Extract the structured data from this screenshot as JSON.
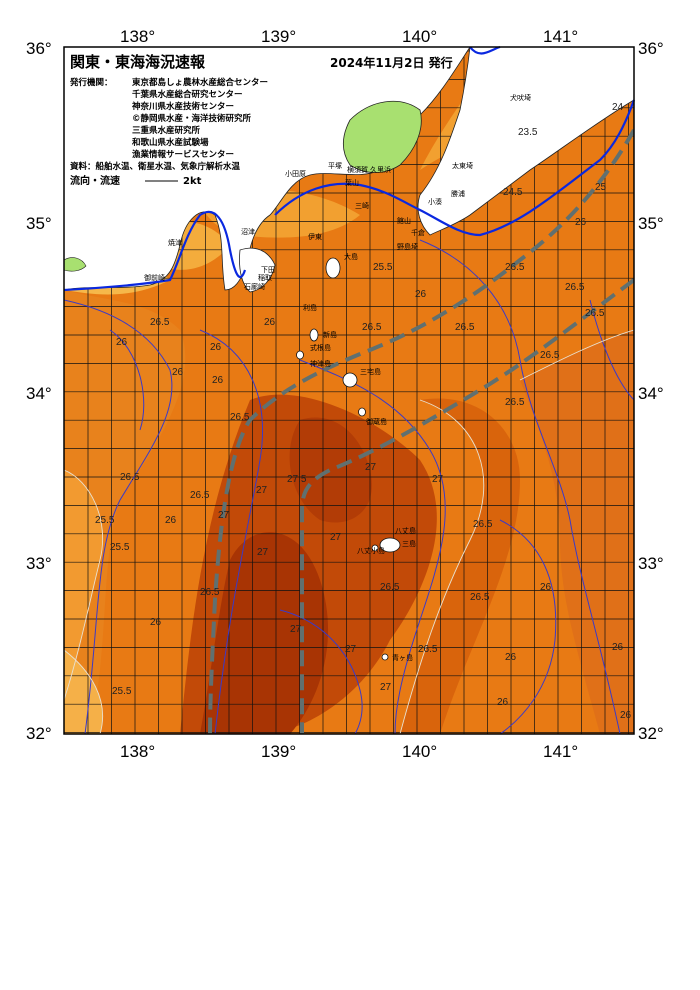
{
  "title": "関東・東海海況速報",
  "date": "2024年11月2日 発行",
  "publisher_label": "発行機関：",
  "publishers": [
    "東京都島しょ農林水産総合センター",
    "千葉県水産総合研究センター",
    "神奈川県水産技術センター",
    "©静岡県水産・海洋技術研究所",
    "三重県水産研究所",
    "和歌山県水産試験場",
    "漁業情報サービスセンター"
  ],
  "source_text": "資料：船舶水温、衛星水温、気象庁解析水温",
  "flow_label": "流向・流速",
  "flow_scale": "2kt",
  "lon_labels": [
    "138°",
    "139°",
    "140°",
    "141°"
  ],
  "lat_labels": [
    "36°",
    "35°",
    "34°",
    "33°",
    "32°"
  ],
  "place_names": {
    "kobo": "犬吠埼",
    "taito": "太東埼",
    "katsuura": "勝浦",
    "kominato": "小湊",
    "tateyama": "館山",
    "chikura": "千倉",
    "nojima": "野島埼",
    "hiratsuka": "平塚",
    "odawara": "小田原",
    "yokosuka": "横須賀",
    "hayama": "葉山",
    "misaki": "三崎",
    "kurihama": "久里浜",
    "oshima": "大島",
    "toshima": "利島",
    "niijima": "新島",
    "shikinejima": "式根島",
    "kozushima": "神津島",
    "miyakejima": "三宅島",
    "mikurajima": "御蔵島",
    "inamba": "稲取",
    "hachijojima": "八丈島",
    "kojima": "三島",
    "aogashima": "青ヶ島",
    "ito": "伊東",
    "shimoda": "下田",
    "irozaki": "石廊崎",
    "numazu": "沼津",
    "yaizu": "焼津",
    "omaezaki": "御前崎",
    "inatori": "稲取",
    "hachijo_kojima": "八丈小島"
  },
  "isotherm_labels": [
    "26",
    "26.5",
    "27",
    "25.5",
    "24",
    "23.5",
    "24.5",
    "25",
    "27.5"
  ],
  "legend": {
    "colors": {
      "land": "#ffffff",
      "lake_green": "#a8e070",
      "t_23": "#f7f0a0",
      "t_24": "#f8d050",
      "t_25": "#f2a030",
      "t_26": "#e87a14",
      "t_26_5": "#d9640c",
      "t_27": "#c24a08",
      "t_27_5": "#a83404",
      "current": "#607070",
      "isotherm": "#3a3ac8",
      "coast": "#0a28e0"
    }
  }
}
